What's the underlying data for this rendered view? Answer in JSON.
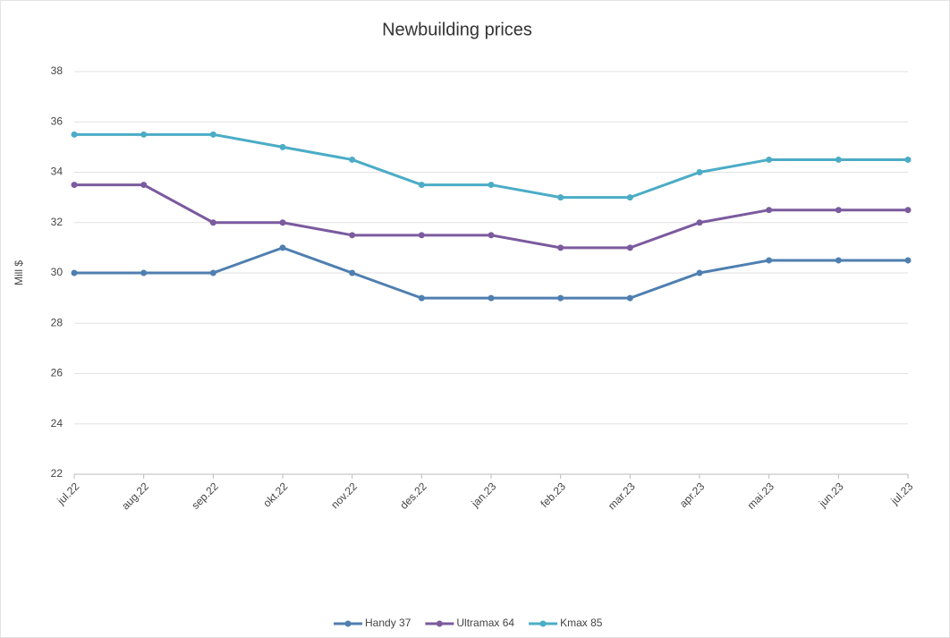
{
  "chart_data": {
    "type": "line",
    "title": "Newbuilding prices",
    "y_label": "Mill $",
    "categories": [
      "jul.22",
      "aug.22",
      "sep.22",
      "okt.22",
      "nov.22",
      "des.22",
      "jan.23",
      "feb.23",
      "mar.23",
      "apr.23",
      "mai.23",
      "jun.23",
      "jul.23"
    ],
    "series": [
      {
        "name": "Handy 37",
        "color": "#4f7fb0",
        "values": [
          30,
          30,
          30,
          31,
          30,
          29,
          29,
          29,
          29,
          30,
          30.5,
          30.5,
          30.5
        ]
      },
      {
        "name": "Ultramax 64",
        "color": "#7b5a9e",
        "values": [
          33.5,
          33.5,
          32,
          32,
          31.5,
          31.5,
          31.5,
          31,
          31,
          32,
          32.5,
          32.5,
          32.5
        ]
      },
      {
        "name": "Kmax 85",
        "color": "#4bacc6",
        "values": [
          35.5,
          35.5,
          35.5,
          35,
          34.5,
          33.5,
          33.5,
          33,
          33,
          34,
          34.5,
          34.5,
          34.5
        ]
      }
    ],
    "ylim": [
      22,
      38
    ],
    "yticks": [
      22,
      24,
      26,
      28,
      30,
      32,
      34,
      36,
      38
    ],
    "grid": true,
    "legend": "bottom"
  }
}
